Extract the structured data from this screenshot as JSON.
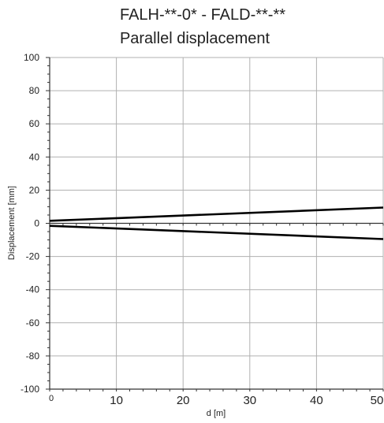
{
  "chart_data": {
    "type": "line",
    "title": "FALH-**-0* - FALD-**-**",
    "subtitle": "Parallel displacement",
    "xlabel": "d [m]",
    "ylabel": "Displacement [mm]",
    "xlim": [
      0,
      50
    ],
    "ylim": [
      -100,
      100
    ],
    "x_ticks": [
      0,
      10,
      20,
      30,
      40,
      50
    ],
    "y_ticks": [
      -100,
      -80,
      -60,
      -40,
      -20,
      0,
      20,
      40,
      60,
      80,
      100
    ],
    "grid": true,
    "series": [
      {
        "x": [
          0,
          50
        ],
        "values": [
          1.5,
          9.5
        ]
      },
      {
        "x": [
          0,
          50
        ],
        "values": [
          -1.5,
          -9.5
        ]
      }
    ],
    "colors": {
      "line": "#000000",
      "grid": "#b0b0b0",
      "axis": "#333333"
    }
  }
}
